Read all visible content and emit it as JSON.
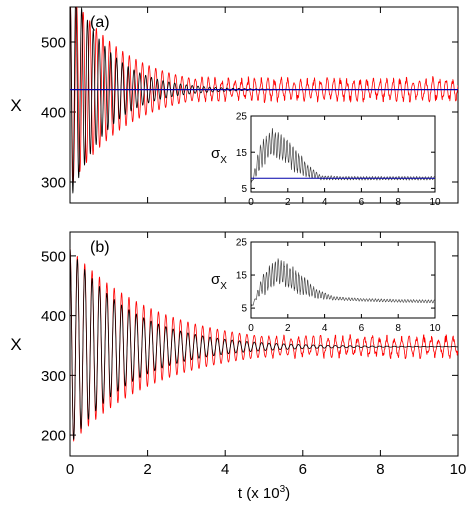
{
  "chart_data": [
    {
      "type": "line",
      "panel_label": "(a)",
      "xlim": [
        0,
        10
      ],
      "ylim": [
        270,
        550
      ],
      "xticks": [
        0,
        2,
        4,
        6,
        8,
        10
      ],
      "yticks": [
        300,
        400,
        500
      ],
      "xlabel": "",
      "ylabel": "X",
      "grid": false,
      "series": [
        {
          "color": "#ff0000",
          "kind": "damped-oscillation-with-fluctuations",
          "mean": 432,
          "initial_amplitude": 140,
          "decay_scale": 1.45,
          "period": 0.17,
          "residual_amplitude": 13
        },
        {
          "color": "#000000",
          "kind": "damped-oscillation",
          "mean": 432,
          "initial_amplitude": 160,
          "decay_scale": 0.95,
          "period": 0.15
        },
        {
          "color": "#0000aa",
          "kind": "constant",
          "value": 432
        }
      ],
      "inset": {
        "type": "line",
        "xlim": [
          0,
          10
        ],
        "ylim": [
          4,
          25
        ],
        "xticks": [
          0,
          2,
          4,
          6,
          8,
          10
        ],
        "yticks": [
          5,
          15,
          25
        ],
        "ylabel": "σ",
        "ylabel_sub": "X",
        "series": [
          {
            "color": "#333333",
            "kind": "noisy-hump",
            "points": [
              [
                0,
                6
              ],
              [
                0.5,
                14
              ],
              [
                1.2,
                18
              ],
              [
                2,
                15
              ],
              [
                3,
                10
              ],
              [
                3.8,
                8
              ],
              [
                5,
                7.8
              ],
              [
                10,
                7.8
              ]
            ],
            "band": 4
          },
          {
            "color": "#0000aa",
            "kind": "constant",
            "value": 7.8
          }
        ]
      }
    },
    {
      "type": "line",
      "panel_label": "(b)",
      "xlim": [
        0,
        10
      ],
      "ylim": [
        165,
        540
      ],
      "xticks": [
        0,
        2,
        4,
        6,
        8,
        10
      ],
      "yticks": [
        200,
        300,
        400,
        500
      ],
      "xlabel": "t (x 10",
      "xlabel_sup": "3",
      "xlabel_tail": ")",
      "ylabel": "X",
      "grid": false,
      "series": [
        {
          "color": "#ff0000",
          "kind": "damped-oscillation-with-fluctuations",
          "mean": 348,
          "initial_amplitude": 165,
          "decay_scale": 2.2,
          "period": 0.19,
          "residual_amplitude": 14
        },
        {
          "color": "#000000",
          "kind": "damped-oscillation",
          "mean": 348,
          "initial_amplitude": 165,
          "decay_scale": 1.55,
          "period": 0.19
        }
      ],
      "inset": {
        "type": "line",
        "xlim": [
          0,
          10
        ],
        "ylim": [
          2,
          25
        ],
        "xticks": [
          0,
          2,
          4,
          6,
          8,
          10
        ],
        "yticks": [
          5,
          15,
          25
        ],
        "ylabel": "σ",
        "ylabel_sub": "X",
        "series": [
          {
            "color": "#333333",
            "kind": "noisy-hump",
            "points": [
              [
                0,
                5
              ],
              [
                0.6,
                12
              ],
              [
                1.5,
                16.5
              ],
              [
                2.5,
                13
              ],
              [
                3.5,
                9.5
              ],
              [
                4.5,
                8
              ],
              [
                6,
                7.5
              ],
              [
                8,
                7.2
              ],
              [
                10,
                7
              ]
            ],
            "band": 4
          }
        ]
      }
    }
  ]
}
